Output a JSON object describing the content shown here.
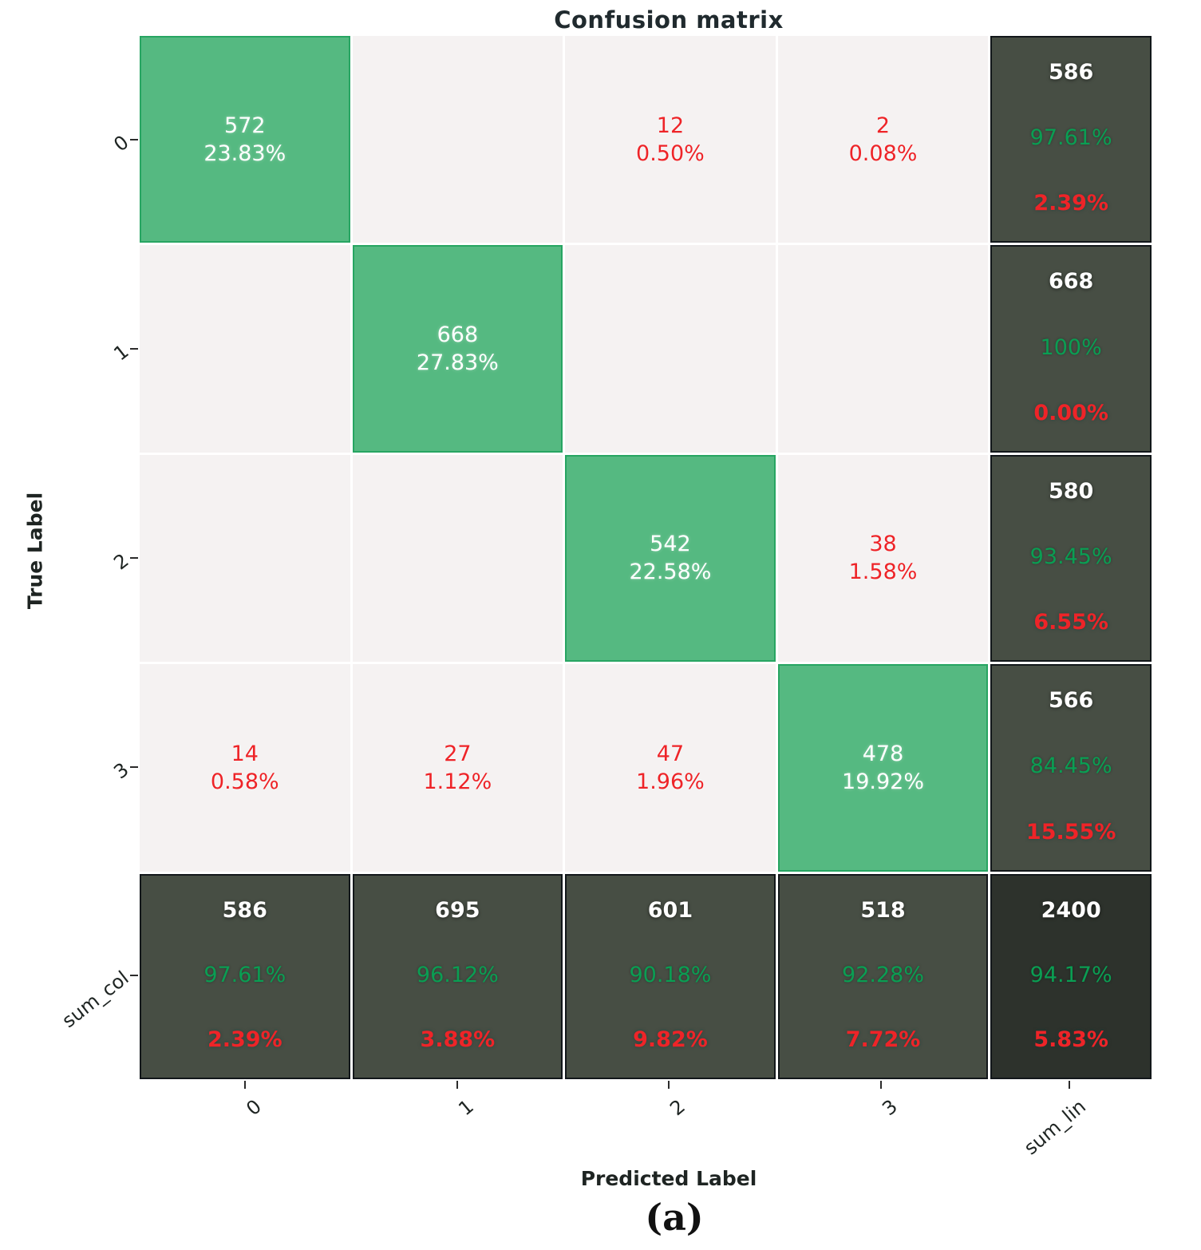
{
  "title": "Confusion matrix",
  "caption": "(a)",
  "axes": {
    "y_label": "True Label",
    "x_label": "Predicted Label",
    "y_ticks": [
      "0",
      "1",
      "2",
      "3",
      "sum_col"
    ],
    "x_ticks": [
      "0",
      "1",
      "2",
      "3",
      "sum_lin"
    ]
  },
  "colors": {
    "diag_bg": "#55b981",
    "diag_border": "#27a562",
    "empty_bg": "#f5f2f2",
    "sum_bg": "#474e44",
    "total_bg": "#2d322c",
    "green_text": "#0a9e53",
    "red": "#ee2428"
  },
  "chart_data": {
    "type": "heatmap",
    "title": "Confusion matrix",
    "xlabel": "Predicted Label",
    "ylabel": "True Label",
    "x_categories": [
      "0",
      "1",
      "2",
      "3",
      "sum_lin"
    ],
    "y_categories": [
      "0",
      "1",
      "2",
      "3",
      "sum_col"
    ],
    "legend": "none",
    "grid": "white cell separators",
    "cells": [
      [
        {
          "type": "diag",
          "count": 572,
          "pct": "23.83%"
        },
        {
          "type": "empty"
        },
        {
          "type": "err",
          "count": 12,
          "pct": "0.50%"
        },
        {
          "type": "err",
          "count": 2,
          "pct": "0.08%"
        },
        {
          "type": "sum",
          "count": 586,
          "good": "97.61%",
          "bad": "2.39%"
        }
      ],
      [
        {
          "type": "empty"
        },
        {
          "type": "diag",
          "count": 668,
          "pct": "27.83%"
        },
        {
          "type": "empty"
        },
        {
          "type": "empty"
        },
        {
          "type": "sum",
          "count": 668,
          "good": "100%",
          "bad": "0.00%"
        }
      ],
      [
        {
          "type": "empty"
        },
        {
          "type": "empty"
        },
        {
          "type": "diag",
          "count": 542,
          "pct": "22.58%"
        },
        {
          "type": "err",
          "count": 38,
          "pct": "1.58%"
        },
        {
          "type": "sum",
          "count": 580,
          "good": "93.45%",
          "bad": "6.55%"
        }
      ],
      [
        {
          "type": "err",
          "count": 14,
          "pct": "0.58%"
        },
        {
          "type": "err",
          "count": 27,
          "pct": "1.12%"
        },
        {
          "type": "err",
          "count": 47,
          "pct": "1.96%"
        },
        {
          "type": "diag",
          "count": 478,
          "pct": "19.92%"
        },
        {
          "type": "sum",
          "count": 566,
          "good": "84.45%",
          "bad": "15.55%"
        }
      ],
      [
        {
          "type": "sum",
          "count": 586,
          "good": "97.61%",
          "bad": "2.39%"
        },
        {
          "type": "sum",
          "count": 695,
          "good": "96.12%",
          "bad": "3.88%"
        },
        {
          "type": "sum",
          "count": 601,
          "good": "90.18%",
          "bad": "9.82%"
        },
        {
          "type": "sum",
          "count": 518,
          "good": "92.28%",
          "bad": "7.72%"
        },
        {
          "type": "total",
          "count": 2400,
          "good": "94.17%",
          "bad": "5.83%"
        }
      ]
    ]
  }
}
